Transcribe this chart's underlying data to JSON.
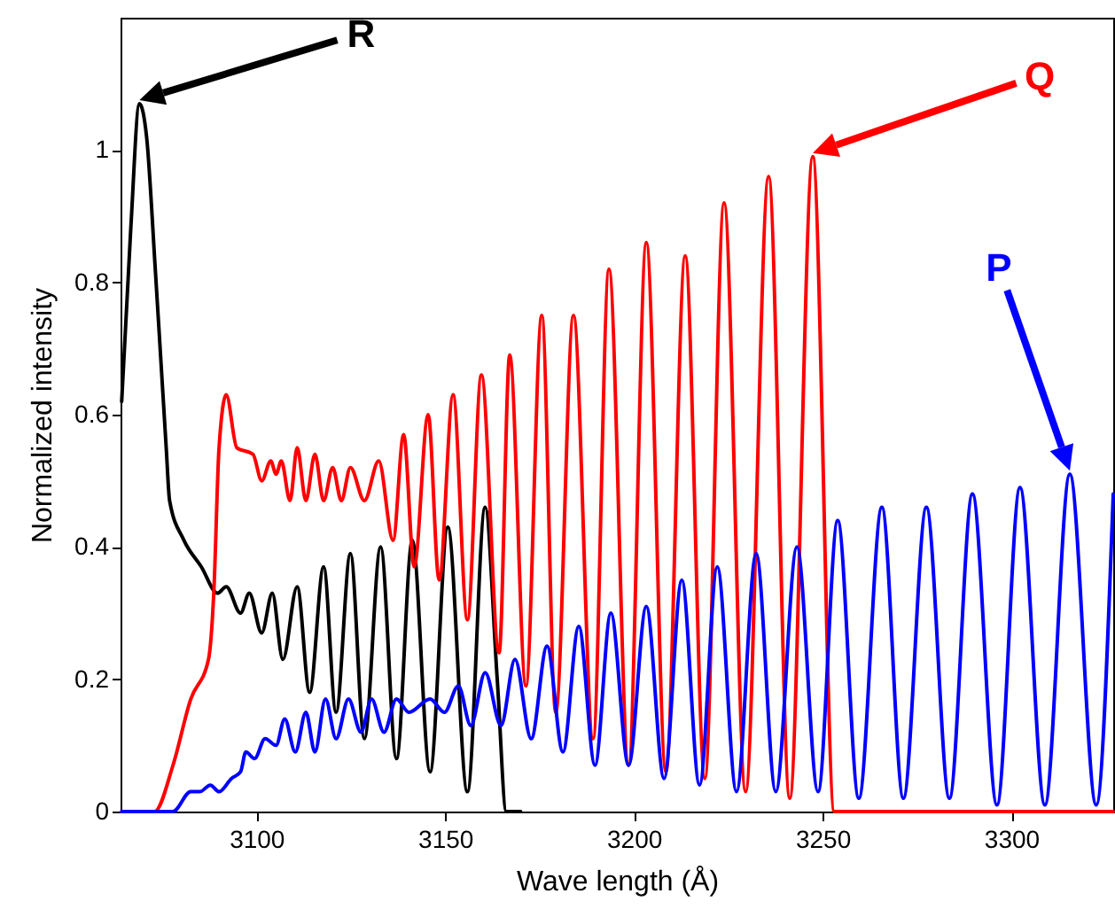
{
  "chart_data": {
    "type": "line",
    "xlabel": "Wave length (Å)",
    "ylabel": "Normalized intensity",
    "xlim": [
      3064,
      3327
    ],
    "ylim": [
      0,
      1.2
    ],
    "xticks": [
      3100,
      3150,
      3200,
      3250,
      3300
    ],
    "yticks": [
      0,
      0.2,
      0.4,
      0.6,
      0.8,
      1
    ],
    "grid": false,
    "legend": false,
    "marker": "none",
    "line_style": "solid",
    "series": [
      {
        "name": "R",
        "color": "#000000",
        "x": [
          3064.3,
          3066.7,
          3069.0,
          3070.9,
          3073.2,
          3074.6,
          3076.1,
          3077.0,
          3080.8,
          3085.4,
          3089.7,
          3092.0,
          3095.8,
          3098.1,
          3101.4,
          3104.2,
          3107.0,
          3110.8,
          3114.1,
          3117.8,
          3121.1,
          3124.9,
          3128.6,
          3132.9,
          3137.1,
          3141.3,
          3146.0,
          3150.7,
          3155.9,
          3160.6,
          3163.8,
          3166.2,
          3170
        ],
        "values": [
          0.62,
          0.88,
          1.07,
          1.02,
          0.82,
          0.69,
          0.55,
          0.47,
          0.41,
          0.37,
          0.33,
          0.34,
          0.3,
          0.33,
          0.27,
          0.33,
          0.23,
          0.34,
          0.18,
          0.37,
          0.15,
          0.39,
          0.11,
          0.4,
          0.08,
          0.41,
          0.06,
          0.43,
          0.03,
          0.46,
          0.2,
          0.0,
          0.0
        ]
      },
      {
        "name": "Q",
        "color": "#ff0000",
        "x": [
          3064.3,
          3073,
          3077.9,
          3082.6,
          3087.3,
          3088.7,
          3090.1,
          3092.0,
          3094.8,
          3099.1,
          3101.4,
          3103.8,
          3105.2,
          3106.6,
          3108.9,
          3110.8,
          3113.1,
          3115.5,
          3117.8,
          3120.2,
          3122.5,
          3124.9,
          3128.6,
          3132.4,
          3136.2,
          3139.0,
          3141.8,
          3145.5,
          3148.4,
          3152.1,
          3155.9,
          3159.6,
          3164.3,
          3167.1,
          3171.4,
          3175.6,
          3179.3,
          3184.0,
          3189.2,
          3193.4,
          3198.6,
          3203.3,
          3208.5,
          3213.6,
          3218.8,
          3223.9,
          3229.6,
          3235.7,
          3241.3,
          3247.4,
          3253.1,
          3327
        ],
        "values": [
          0,
          0,
          0.07,
          0.17,
          0.23,
          0.33,
          0.55,
          0.63,
          0.55,
          0.54,
          0.5,
          0.53,
          0.51,
          0.53,
          0.47,
          0.55,
          0.47,
          0.54,
          0.47,
          0.52,
          0.47,
          0.52,
          0.47,
          0.53,
          0.41,
          0.57,
          0.37,
          0.6,
          0.35,
          0.63,
          0.29,
          0.66,
          0.24,
          0.69,
          0.19,
          0.75,
          0.15,
          0.75,
          0.11,
          0.82,
          0.07,
          0.86,
          0.06,
          0.84,
          0.05,
          0.92,
          0.03,
          0.96,
          0.02,
          0.99,
          0,
          0
        ]
      },
      {
        "name": "P",
        "color": "#0000ff",
        "x": [
          3064.3,
          3077.9,
          3082.6,
          3085.0,
          3087.8,
          3090.1,
          3093.4,
          3095.8,
          3097.2,
          3099.5,
          3102.3,
          3105.2,
          3107.5,
          3110.3,
          3113.1,
          3115.5,
          3118.3,
          3121.1,
          3124.4,
          3127.7,
          3130.5,
          3133.8,
          3137.1,
          3140.4,
          3146.0,
          3149.8,
          3153.5,
          3156.8,
          3160.6,
          3164.8,
          3168.5,
          3172.8,
          3177.0,
          3181.2,
          3185.4,
          3189.7,
          3193.9,
          3198.6,
          3203.3,
          3208.0,
          3212.7,
          3217.4,
          3222.1,
          3227.2,
          3232.4,
          3237.6,
          3243.2,
          3248.8,
          3254.0,
          3259.6,
          3265.7,
          3271.4,
          3277.5,
          3283.6,
          3289.7,
          3296.2,
          3302.3,
          3308.9,
          3315.5,
          3322.5,
          3327
        ],
        "values": [
          0,
          0,
          0.03,
          0.03,
          0.04,
          0.03,
          0.05,
          0.06,
          0.09,
          0.08,
          0.11,
          0.1,
          0.14,
          0.09,
          0.15,
          0.09,
          0.17,
          0.11,
          0.17,
          0.12,
          0.17,
          0.12,
          0.17,
          0.15,
          0.17,
          0.15,
          0.19,
          0.13,
          0.21,
          0.13,
          0.23,
          0.11,
          0.25,
          0.09,
          0.28,
          0.07,
          0.3,
          0.07,
          0.31,
          0.05,
          0.35,
          0.04,
          0.37,
          0.03,
          0.39,
          0.03,
          0.4,
          0.03,
          0.44,
          0.02,
          0.46,
          0.02,
          0.46,
          0.02,
          0.48,
          0.01,
          0.49,
          0.01,
          0.51,
          0.01,
          0.48
        ]
      }
    ]
  }
}
